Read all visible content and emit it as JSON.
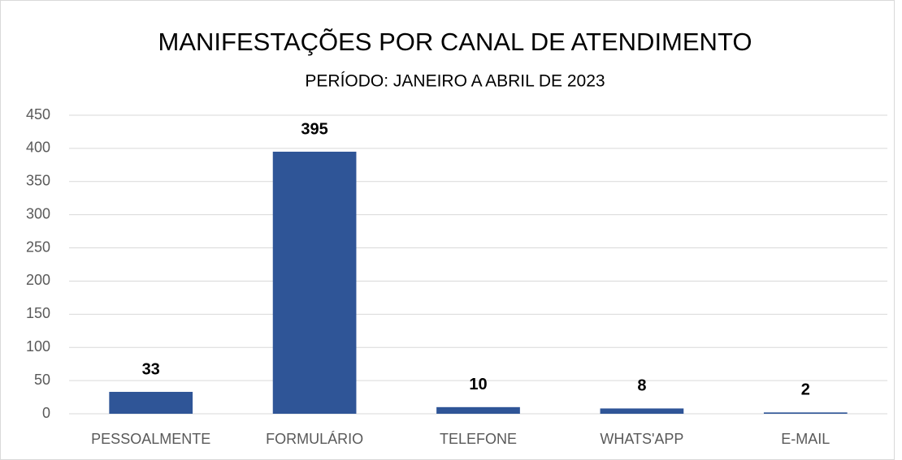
{
  "chart_data": {
    "type": "bar",
    "title": "MANIFESTAÇÕES POR CANAL DE ATENDIMENTO",
    "subtitle": "PERÍODO: JANEIRO A ABRIL DE 2023",
    "categories": [
      "PESSOALMENTE",
      "FORMULÁRIO",
      "TELEFONE",
      "WHATS'APP",
      "E-MAIL"
    ],
    "values": [
      33,
      395,
      10,
      8,
      2
    ],
    "color": "#2f5597",
    "ylim": [
      0,
      450
    ],
    "yticks": [
      0,
      50,
      100,
      150,
      200,
      250,
      300,
      350,
      400,
      450
    ],
    "grid": true
  }
}
